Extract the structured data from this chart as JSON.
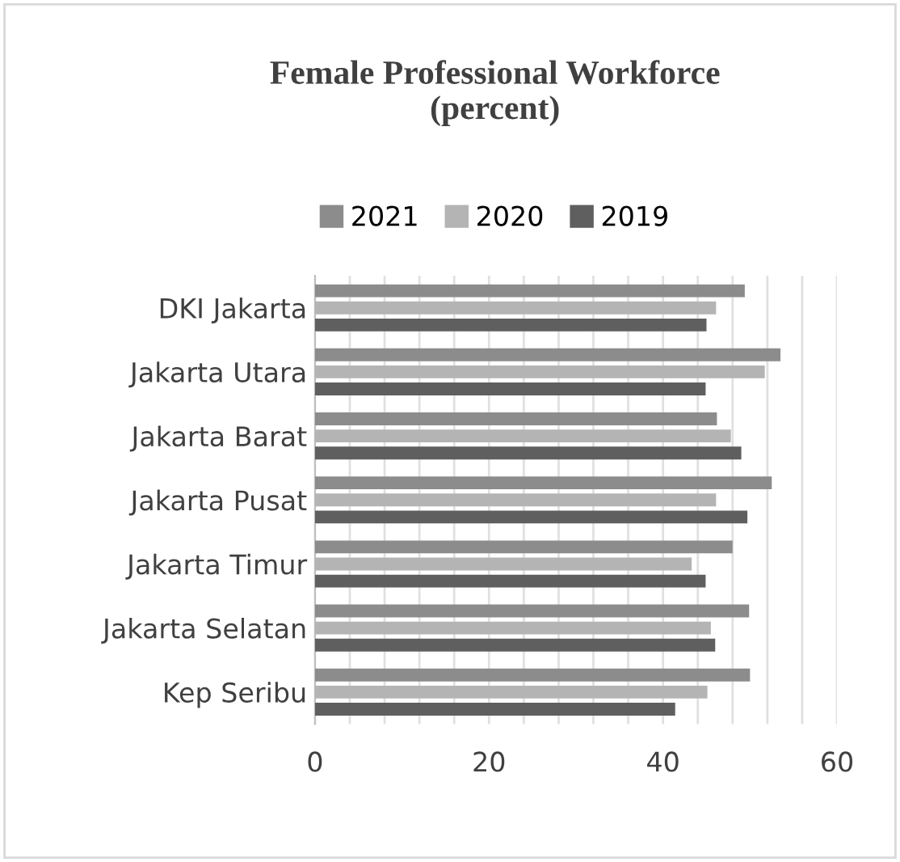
{
  "chart_data": {
    "type": "bar",
    "orientation": "horizontal",
    "title": "Female Professional Workforce\n(percent)",
    "categories": [
      "DKI Jakarta",
      "Jakarta Utara",
      "Jakarta Barat",
      "Jakarta Pusat",
      "Jakarta Timur",
      "Jakarta Selatan",
      "Kep Seribu"
    ],
    "series": [
      {
        "name": "2021",
        "color": "#8c8c8c",
        "values": [
          49.4,
          53.5,
          46.2,
          52.5,
          48.0,
          49.9,
          50.0
        ]
      },
      {
        "name": "2020",
        "color": "#b4b4b4",
        "values": [
          46.1,
          51.7,
          47.8,
          46.1,
          43.3,
          45.5,
          45.1
        ]
      },
      {
        "name": "2019",
        "color": "#5f5f5f",
        "values": [
          45.0,
          44.9,
          49.0,
          49.7,
          44.9,
          46.0,
          41.4
        ]
      }
    ],
    "xlim": [
      0,
      60
    ],
    "xticks": [
      0,
      {
        "value": 4,
        "label": null
      },
      {
        "value": 8,
        "label": null
      },
      {
        "value": 12,
        "label": null
      },
      {
        "value": 16,
        "label": null
      },
      20,
      {
        "value": 24,
        "label": null
      },
      {
        "value": 28,
        "label": null
      },
      {
        "value": 32,
        "label": null
      },
      {
        "value": 36,
        "label": null
      },
      40,
      {
        "value": 44,
        "label": null
      },
      {
        "value": 48,
        "label": null
      },
      {
        "value": 52,
        "label": null
      },
      {
        "value": 56,
        "label": null
      },
      60
    ],
    "grid": "x",
    "legend": "top"
  }
}
